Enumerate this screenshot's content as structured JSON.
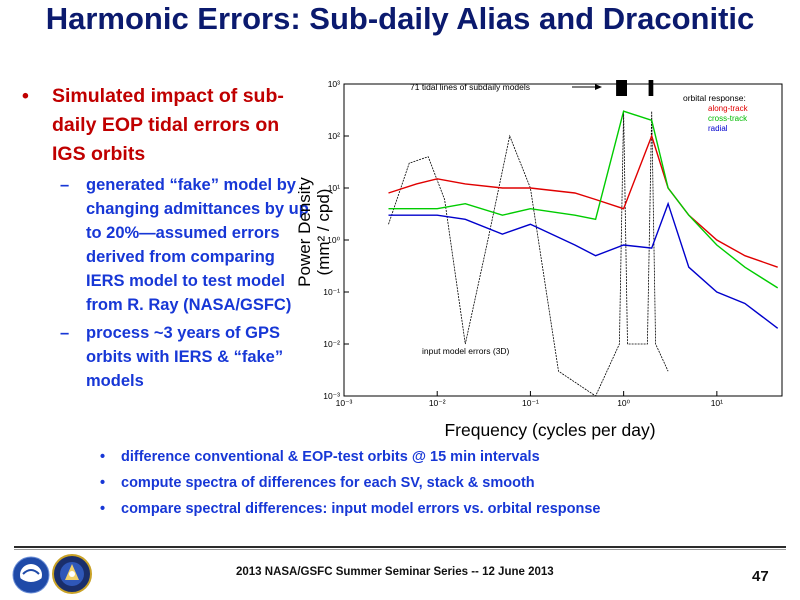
{
  "title": "Harmonic Errors: Sub-daily Alias and Draconitic",
  "bullet_main": "Simulated impact of sub-daily EOP tidal errors on IGS orbits",
  "sub_bullets": [
    "generated “fake” model by changing admittances by up to 20%—assumed errors derived from comparing IERS model to test model from R. Ray (NASA/GSFC)",
    "process ~3 years of GPS orbits with IERS & “fake” models"
  ],
  "sub_sub_bullets": [
    "difference conventional & EOP-test orbits @ 15 min intervals",
    "compute spectra of differences for each SV, stack & smooth",
    "compare spectral differences: input model errors vs. orbital response"
  ],
  "chart_data": {
    "type": "line",
    "xlabel": "Frequency (cycles per day)",
    "ylabel": "Power Density  (mm² / cpd)",
    "x_scale": "log",
    "y_scale": "log",
    "xlim": [
      0.001,
      50
    ],
    "ylim": [
      0.001,
      1000
    ],
    "x_ticks": [
      "10⁻³",
      "10⁻²",
      "10⁻¹",
      "10⁰",
      "10¹"
    ],
    "y_ticks": [
      "10³",
      "10²",
      "10¹",
      "10⁰",
      "10⁻¹",
      "10⁻²",
      "10⁻³"
    ],
    "annotations": {
      "tidal_lines": "71 tidal lines of subdaily models",
      "input_errors": "input model errors (3D)"
    },
    "legend_title": "orbital response:",
    "legend_placement": "top-right",
    "series": [
      {
        "name": "along-track",
        "color": "#e00000",
        "x": [
          0.003,
          0.006,
          0.01,
          0.02,
          0.05,
          0.1,
          0.3,
          0.5,
          1.0,
          2.0,
          3.0,
          5.0,
          10.0,
          20.0,
          45.0
        ],
        "y": [
          8,
          12,
          15,
          12,
          10,
          10,
          8,
          6,
          4,
          100,
          10,
          3,
          1,
          0.5,
          0.3
        ]
      },
      {
        "name": "cross-track",
        "color": "#00cc00",
        "x": [
          0.003,
          0.006,
          0.01,
          0.02,
          0.05,
          0.1,
          0.3,
          0.5,
          1.0,
          2.0,
          3.0,
          5.0,
          10.0,
          20.0,
          45.0
        ],
        "y": [
          4,
          4,
          4,
          5,
          3,
          4,
          3,
          2.5,
          300,
          200,
          10,
          3,
          0.8,
          0.3,
          0.12
        ]
      },
      {
        "name": "radial",
        "color": "#0000cc",
        "x": [
          0.003,
          0.006,
          0.01,
          0.02,
          0.05,
          0.1,
          0.3,
          0.5,
          1.0,
          2.0,
          3.0,
          5.0,
          10.0,
          20.0,
          45.0
        ],
        "y": [
          3,
          3,
          3,
          2.5,
          1.3,
          2,
          0.8,
          0.5,
          0.8,
          0.7,
          5,
          0.3,
          0.1,
          0.06,
          0.02
        ]
      },
      {
        "name": "input model errors (3D)",
        "color": "#000000",
        "x": [
          0.003,
          0.005,
          0.008,
          0.012,
          0.02,
          0.035,
          0.06,
          0.1,
          0.2,
          0.5,
          0.9,
          1.0,
          1.1,
          1.8,
          2.0,
          2.2,
          3.0
        ],
        "y": [
          2,
          30,
          40,
          6,
          0.01,
          1,
          100,
          10,
          0.003,
          0.001,
          0.01,
          300,
          0.01,
          0.01,
          300,
          0.01,
          0.003
        ]
      }
    ]
  },
  "footer": {
    "text": "2013 NASA/GSFC Summer Seminar Series -- 12 June 2013",
    "page_number": "47"
  },
  "logos": [
    "noaa-logo",
    "ngs-logo"
  ]
}
